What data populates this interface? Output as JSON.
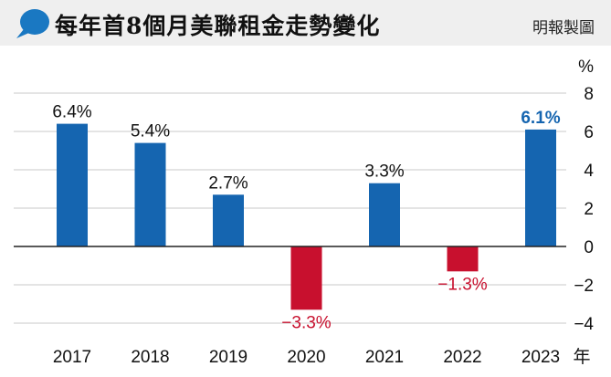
{
  "header": {
    "title": "每年首8個月美聯租金走勢變化",
    "credit": "明報製圖"
  },
  "colors": {
    "positive": "#1565b0",
    "negative": "#c8102e",
    "bubble": "#1a78c2",
    "highlight_label": "#1565b0",
    "negative_label": "#c8102e"
  },
  "chart_data": {
    "type": "bar",
    "title": "每年首8個月美聯租金走勢變化",
    "categories": [
      "2017",
      "2018",
      "2019",
      "2020",
      "2021",
      "2022",
      "2023"
    ],
    "values": [
      6.4,
      5.4,
      2.7,
      -3.3,
      3.3,
      -1.3,
      6.1
    ],
    "value_labels": [
      "6.4%",
      "5.4%",
      "2.7%",
      "−3.3%",
      "3.3%",
      "−1.3%",
      "6.1%"
    ],
    "highlight_index": 6,
    "ylim": [
      -5,
      8
    ],
    "yticks": [
      -4,
      -2,
      0,
      2,
      4,
      6,
      8
    ],
    "ytick_labels": [
      "−4",
      "−2",
      "0",
      "2",
      "4",
      "6",
      "8"
    ],
    "y_unit": "%",
    "x_unit": "年",
    "grid": true,
    "legend": "none"
  }
}
